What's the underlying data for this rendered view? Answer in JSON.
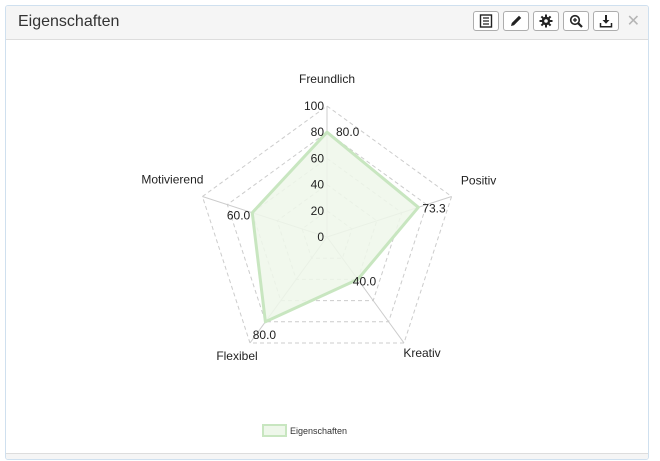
{
  "panel": {
    "title": "Eigenschaften",
    "close_symbol": "✕"
  },
  "toolbar": {
    "buttons": [
      {
        "icon": "list-icon"
      },
      {
        "icon": "pencil-icon"
      },
      {
        "icon": "gear-icon"
      },
      {
        "icon": "zoom-in-icon"
      },
      {
        "icon": "download-icon"
      }
    ]
  },
  "colors": {
    "series_stroke": "#c8e6c0",
    "series_fill": "#eef7ea",
    "grid": "#cccccc",
    "header_bg": "#f5f5f5"
  },
  "chart_data": {
    "type": "radar",
    "axes": [
      "Freundlich",
      "Positiv",
      "Kreativ",
      "Flexibel",
      "Motivierend"
    ],
    "ticks": [
      "0",
      "20",
      "40",
      "60",
      "80",
      "100"
    ],
    "rlim": [
      0,
      100
    ],
    "series": [
      {
        "name": "Eigenschaften",
        "values": [
          80.0,
          73.3,
          40.0,
          80.0,
          60.0
        ]
      }
    ],
    "value_labels": [
      "80.0",
      "73.3",
      "40.0",
      "80.0",
      "60.0"
    ],
    "legend": "bottom",
    "grid": true
  }
}
